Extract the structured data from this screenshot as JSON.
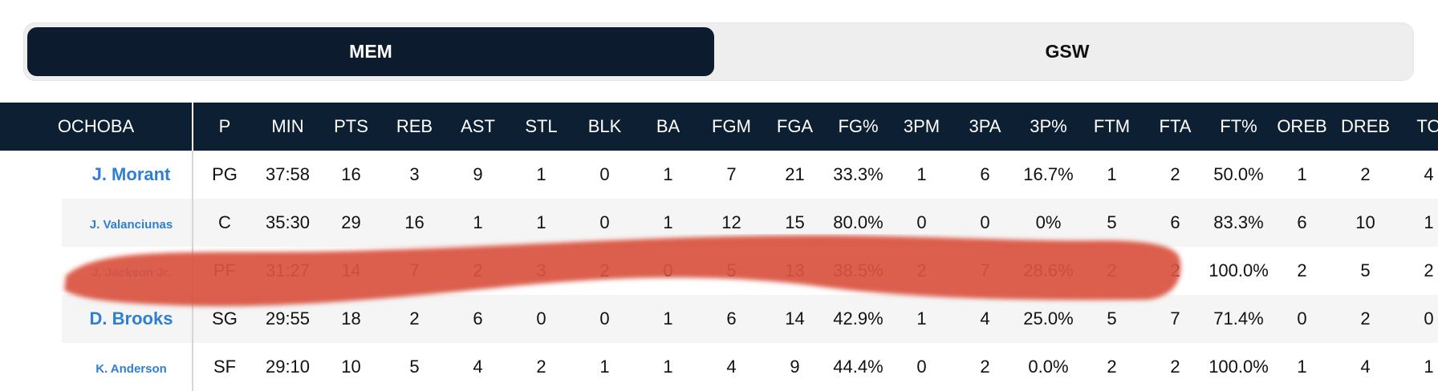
{
  "teams": {
    "active": "MEM",
    "other": "GSW"
  },
  "columns": [
    "OCHOBA",
    "P",
    "MIN",
    "PTS",
    "REB",
    "AST",
    "STL",
    "BLK",
    "BA",
    "FGM",
    "FGA",
    "FG%",
    "3PM",
    "3PA",
    "3P%",
    "FTM",
    "FTA",
    "FT%",
    "OREB",
    "DREB",
    "TO"
  ],
  "players": [
    {
      "name": "J. Morant",
      "size": "large",
      "stats": [
        "PG",
        "37:58",
        "16",
        "3",
        "9",
        "1",
        "0",
        "1",
        "7",
        "21",
        "33.3%",
        "1",
        "6",
        "16.7%",
        "1",
        "2",
        "50.0%",
        "1",
        "2",
        "4"
      ]
    },
    {
      "name": "J. Valanciunas",
      "size": "small",
      "stats": [
        "C",
        "35:30",
        "29",
        "16",
        "1",
        "1",
        "0",
        "1",
        "12",
        "15",
        "80.0%",
        "0",
        "0",
        "0%",
        "5",
        "6",
        "83.3%",
        "6",
        "10",
        "1"
      ]
    },
    {
      "name": "J. Jackson Jr.",
      "size": "small",
      "stats": [
        "PF",
        "31:27",
        "14",
        "7",
        "2",
        "3",
        "2",
        "0",
        "5",
        "13",
        "38.5%",
        "2",
        "7",
        "28.6%",
        "2",
        "2",
        "100.0%",
        "2",
        "5",
        "2"
      ]
    },
    {
      "name": "D. Brooks",
      "size": "large",
      "stats": [
        "SG",
        "29:55",
        "18",
        "2",
        "6",
        "0",
        "0",
        "1",
        "6",
        "14",
        "42.9%",
        "1",
        "4",
        "25.0%",
        "5",
        "7",
        "71.4%",
        "0",
        "2",
        "0"
      ]
    },
    {
      "name": "K. Anderson",
      "size": "small",
      "stats": [
        "SF",
        "29:10",
        "10",
        "5",
        "4",
        "2",
        "1",
        "1",
        "4",
        "9",
        "44.4%",
        "0",
        "2",
        "0.0%",
        "2",
        "2",
        "100.0%",
        "1",
        "4",
        "1"
      ]
    }
  ],
  "colors": {
    "header_bg": "#0d1f33",
    "active_tab": "#0d1b2e",
    "player_link": "#2f7fd1",
    "scribble": "#d9533e"
  }
}
